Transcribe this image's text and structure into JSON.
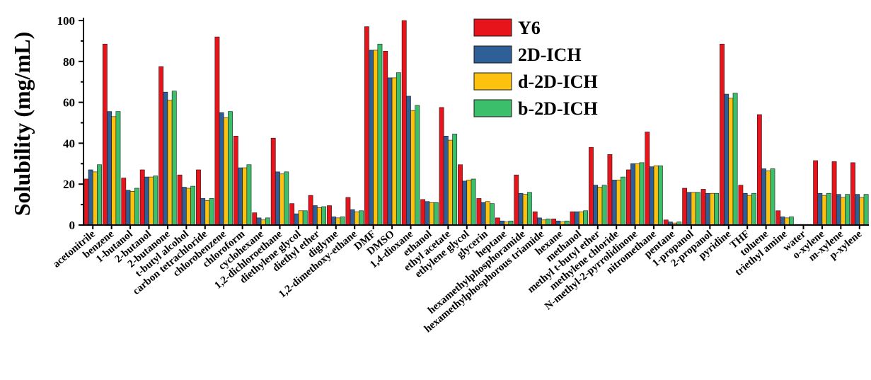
{
  "chart_data": {
    "type": "bar",
    "ylabel": "Solubility (mg/mL)",
    "xlabel": "",
    "ylim": [
      0,
      100
    ],
    "yticks": [
      0,
      20,
      40,
      60,
      80,
      100
    ],
    "legend_position": "top-center",
    "categories": [
      "acetonitrile",
      "benzene",
      "1-butanol",
      "2-butanol",
      "2-butanone",
      "t-butyl alcohol",
      "carbon tetrachloride",
      "chlorobenzene",
      "chloroform",
      "cyclohexane",
      "1,2-dichloroethane",
      "diethylene glycol",
      "diethyl ether",
      "diglyme",
      "1,2-dimethoxy-ethane",
      "DMF",
      "DMSO",
      "1,4-dioxane",
      "ethanol",
      "ethyl acetate",
      "ethylene glycol",
      "glycerin",
      "heptane",
      "hexamethylphosphoramide",
      "hexamethylphosphorous triamide",
      "hexane",
      "methanol",
      "methyl t-butyl ether",
      "methylene chloride",
      "N-methyl-2-pyrrolidinone",
      "nitromethane",
      "pentane",
      "1-propanol",
      "2-propanol",
      "pyridine",
      "THF",
      "toluene",
      "triethyl amine",
      "water",
      "o-xylene",
      "m-xylene",
      "p-xylene"
    ],
    "series": [
      {
        "name": "Y6",
        "color": "#e8141b",
        "values": [
          22.5,
          88.5,
          23,
          27,
          77.5,
          24.5,
          27,
          92,
          43.5,
          6,
          42.5,
          10.5,
          14.5,
          9.5,
          13.5,
          97,
          85,
          100,
          12.5,
          57.5,
          29.5,
          13,
          3.5,
          24.5,
          6.5,
          3,
          6.5,
          38,
          34.5,
          27,
          45.5,
          2.5,
          18,
          17.5,
          88.5,
          19.5,
          54,
          7,
          0.3,
          31.5,
          31,
          30.5
        ]
      },
      {
        "name": "2D-ICH",
        "color": "#2e5f96",
        "values": [
          27,
          55.5,
          17,
          23.5,
          65,
          18.5,
          13,
          55,
          28,
          3.5,
          26,
          5.5,
          9.5,
          4,
          7.5,
          85.5,
          72,
          63,
          11.5,
          43.5,
          21.5,
          11,
          2,
          15.5,
          3.5,
          2,
          6.5,
          19.5,
          22,
          30,
          28.5,
          1.5,
          16,
          15.5,
          64,
          15.5,
          27.5,
          4,
          0.3,
          15.5,
          15,
          15
        ]
      },
      {
        "name": "d-2D-ICH",
        "color": "#fdc10f",
        "values": [
          26,
          53,
          16.5,
          23.5,
          61,
          18,
          12,
          52.5,
          28,
          2.5,
          25,
          7,
          8.5,
          3.5,
          6.5,
          85.5,
          72,
          56,
          11,
          41.5,
          22,
          11.5,
          1.5,
          15,
          2.5,
          1.5,
          6.5,
          18.5,
          22,
          30,
          29,
          1,
          16,
          15.5,
          62,
          14.5,
          26.5,
          3.5,
          0.3,
          14.5,
          13.5,
          13.5
        ]
      },
      {
        "name": "b-2D-ICH",
        "color": "#3cbf6a",
        "values": [
          29.5,
          55.5,
          18,
          24,
          65.5,
          19,
          13,
          55.5,
          29.5,
          3.5,
          26,
          7,
          9,
          4,
          7,
          88.5,
          74.5,
          58.5,
          11,
          44.5,
          22.5,
          10.5,
          2,
          16,
          3,
          2,
          7,
          19.5,
          23.5,
          30.5,
          29,
          1.5,
          16,
          15.5,
          64.5,
          15.5,
          27.5,
          4,
          0.3,
          15.5,
          15,
          15
        ]
      }
    ]
  }
}
